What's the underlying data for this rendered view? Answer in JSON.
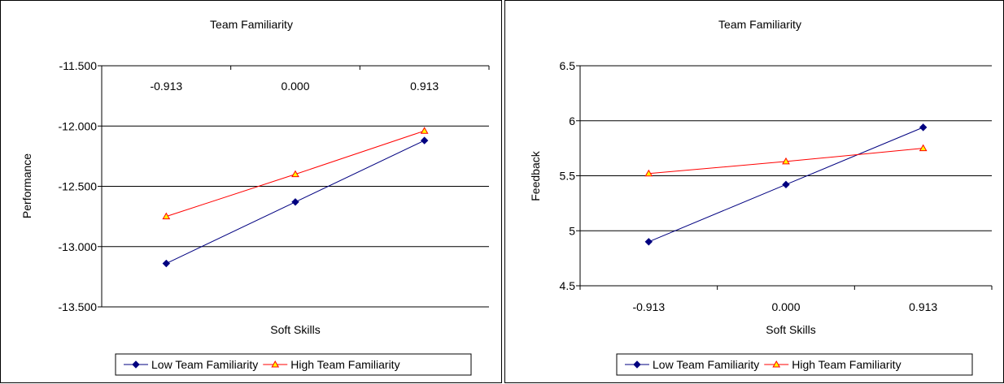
{
  "chart_data": [
    {
      "type": "line",
      "title": "Team Familiarity",
      "xlabel": "Soft Skills",
      "ylabel": "Performance",
      "categories": [
        "-0.913",
        "0.000",
        "0.913"
      ],
      "ylim": [
        -13.5,
        -11.5
      ],
      "yticks": [
        "-11.500",
        "-12.000",
        "-12.500",
        "-13.000",
        "-13.500"
      ],
      "ytick_values": [
        -11.5,
        -12.0,
        -12.5,
        -13.0,
        -13.5
      ],
      "category_labels_position": "top",
      "grid": true,
      "legend": "bottom",
      "series": [
        {
          "name": "Low Team Familiarity",
          "values": [
            -13.14,
            -12.63,
            -12.12
          ],
          "color": "#000080",
          "marker": "diamond"
        },
        {
          "name": "High Team Familiarity",
          "values": [
            -12.75,
            -12.4,
            -12.04
          ],
          "color": "#ff0000",
          "marker": "triangle",
          "marker_fill": "#ffff00"
        }
      ]
    },
    {
      "type": "line",
      "title": "Team Familiarity",
      "xlabel": "Soft Skills",
      "ylabel": "Feedback",
      "categories": [
        "-0.913",
        "0.000",
        "0.913"
      ],
      "ylim": [
        4.5,
        6.5
      ],
      "yticks": [
        "6.5",
        "6",
        "5.5",
        "5",
        "4.5"
      ],
      "ytick_values": [
        6.5,
        6.0,
        5.5,
        5.0,
        4.5
      ],
      "category_labels_position": "bottom",
      "grid": true,
      "legend": "bottom",
      "series": [
        {
          "name": "Low Team Familiarity",
          "values": [
            4.9,
            5.42,
            5.94
          ],
          "color": "#000080",
          "marker": "diamond"
        },
        {
          "name": "High Team Familiarity",
          "values": [
            5.52,
            5.63,
            5.75
          ],
          "color": "#ff0000",
          "marker": "triangle",
          "marker_fill": "#ffff00"
        }
      ]
    }
  ]
}
